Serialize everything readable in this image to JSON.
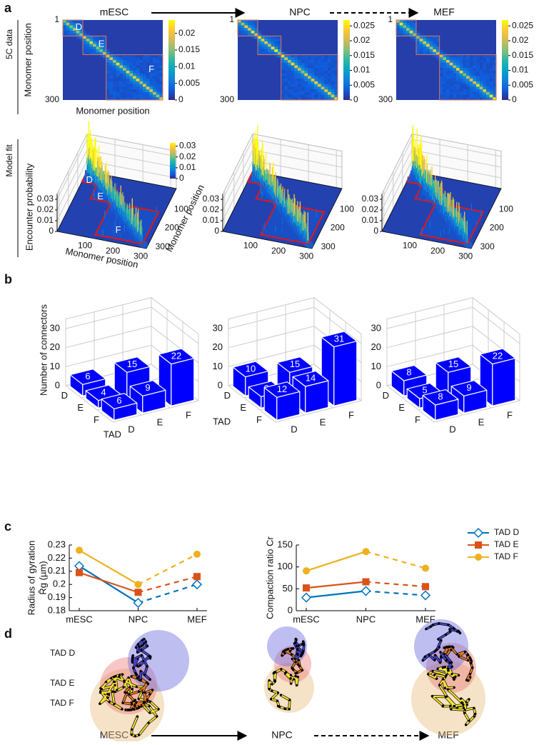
{
  "panel_labels": [
    "a",
    "b",
    "c",
    "d"
  ],
  "header": {
    "stages": [
      "mESC",
      "NPC",
      "MEF"
    ]
  },
  "panel_a": {
    "row_labels": [
      "5C data",
      "Model fit"
    ],
    "heatmap_axis_label": "Monomer position",
    "heatmap_ticks": [
      1,
      300
    ],
    "heatmap_lim": [
      1,
      300
    ],
    "tad_labels": [
      "D",
      "E",
      "F"
    ],
    "colorbars": [
      {
        "clim": [
          0,
          0.024
        ],
        "ticks": [
          0,
          0.005,
          0.01,
          0.015,
          0.02
        ]
      },
      {
        "clim": [
          0,
          0.027
        ],
        "ticks": [
          0,
          0.005,
          0.01,
          0.015,
          0.02,
          0.025
        ]
      },
      {
        "clim": [
          0,
          0.027
        ],
        "ticks": [
          0,
          0.005,
          0.01,
          0.015,
          0.02,
          0.025
        ]
      }
    ],
    "fit": {
      "z_label": "Encounter probability",
      "x_label": "Monomer position",
      "y_label": "Monomer position",
      "zlim": [
        0,
        0.035
      ],
      "zticks": [
        0,
        0.01,
        0.02,
        0.03
      ],
      "xlim": [
        0,
        320
      ],
      "xticks": [
        100,
        200,
        300
      ],
      "yticks": [
        100,
        200,
        300
      ],
      "colorbar": {
        "clim": [
          0,
          0.033
        ],
        "ticks": [
          0,
          0.01,
          0.02,
          0.03
        ]
      }
    }
  },
  "panel_b": {
    "z_label": "Number of connectors",
    "zlim": [
      0,
      35
    ],
    "zticks": [
      0,
      10,
      20,
      30
    ],
    "tad_names": [
      "D",
      "E",
      "F"
    ],
    "axis_label": "TAD",
    "color": "#0000ff",
    "matrices": [
      [
        [
          6,
          null,
          null
        ],
        [
          4,
          15,
          null
        ],
        [
          6,
          9,
          22
        ]
      ],
      [
        [
          10,
          null,
          null
        ],
        [
          6,
          15,
          null
        ],
        [
          12,
          14,
          31
        ]
      ],
      [
        [
          8,
          null,
          null
        ],
        [
          5,
          15,
          null
        ],
        [
          8,
          9,
          22
        ]
      ]
    ]
  },
  "chart_data": [
    {
      "type": "line",
      "y_label": [
        "Radius of gyration",
        "R̄g (µm)"
      ],
      "categories": [
        "mESC",
        "NPC",
        "MEF"
      ],
      "ylim": [
        0.18,
        0.23
      ],
      "yticks": [
        0.18,
        0.19,
        0.2,
        0.21,
        0.22,
        0.23
      ],
      "segment_styles": [
        "solid",
        "dashed"
      ],
      "series": [
        {
          "color": "#0072bd",
          "marker": "diamond",
          "values": [
            0.214,
            0.186,
            0.2
          ]
        },
        {
          "color": "#d95319",
          "marker": "square",
          "values": [
            0.209,
            0.194,
            0.206
          ]
        },
        {
          "color": "#edb120",
          "marker": "circle",
          "values": [
            0.226,
            0.2,
            0.223
          ]
        }
      ]
    },
    {
      "type": "line",
      "y_label": [
        "Compaction ratio Cr"
      ],
      "categories": [
        "mESC",
        "NPC",
        "MEF"
      ],
      "ylim": [
        0,
        150
      ],
      "yticks": [
        0,
        50,
        100,
        150
      ],
      "segment_styles": [
        "solid",
        "dashed"
      ],
      "legend": "right",
      "series": [
        {
          "name": "TAD D",
          "color": "#0072bd",
          "marker": "diamond",
          "values": [
            30,
            45,
            35
          ]
        },
        {
          "name": "TAD E",
          "color": "#d95319",
          "marker": "square",
          "values": [
            52,
            66,
            55
          ]
        },
        {
          "name": "TAD F",
          "color": "#edb120",
          "marker": "circle",
          "values": [
            91,
            135,
            97
          ]
        }
      ]
    }
  ],
  "panel_d": {
    "tad_labels": [
      "TAD D",
      "TAD E",
      "TAD F"
    ],
    "stages": [
      "MESC",
      "NPC",
      "MEF"
    ]
  }
}
